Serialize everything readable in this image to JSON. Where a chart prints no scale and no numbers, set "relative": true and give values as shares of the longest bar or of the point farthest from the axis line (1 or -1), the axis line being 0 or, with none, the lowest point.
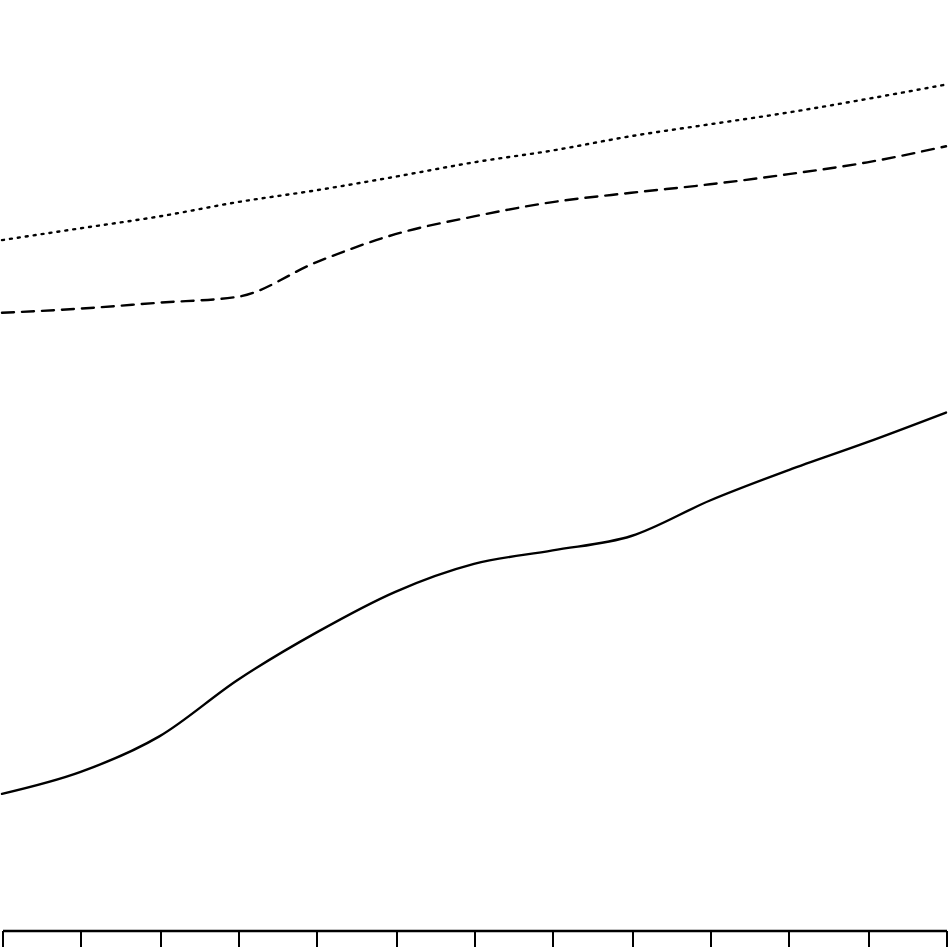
{
  "chart_data": {
    "type": "line",
    "relative": true,
    "tick_labels": false,
    "grid": false,
    "categories": [
      null,
      null,
      null,
      null,
      null,
      null,
      null,
      null,
      null,
      null,
      null,
      null,
      null
    ],
    "series": [
      {
        "color": "#000000",
        "line_style": "dotted",
        "values": [
          0.816,
          0.83,
          0.844,
          0.861,
          0.875,
          0.891,
          0.908,
          0.922,
          0.939,
          0.953,
          0.967,
          0.983,
          1
        ]
      },
      {
        "color": "#000000",
        "line_style": "dashed",
        "values": [
          0.73,
          0.735,
          0.742,
          0.749,
          0.79,
          0.823,
          0.844,
          0.861,
          0.872,
          0.882,
          0.894,
          0.908,
          0.927
        ]
      },
      {
        "color": "#000000",
        "line_style": "solid",
        "values": [
          0.161,
          0.187,
          0.229,
          0.296,
          0.352,
          0.4,
          0.433,
          0.449,
          0.466,
          0.508,
          0.544,
          0.577,
          0.612
        ]
      }
    ]
  }
}
